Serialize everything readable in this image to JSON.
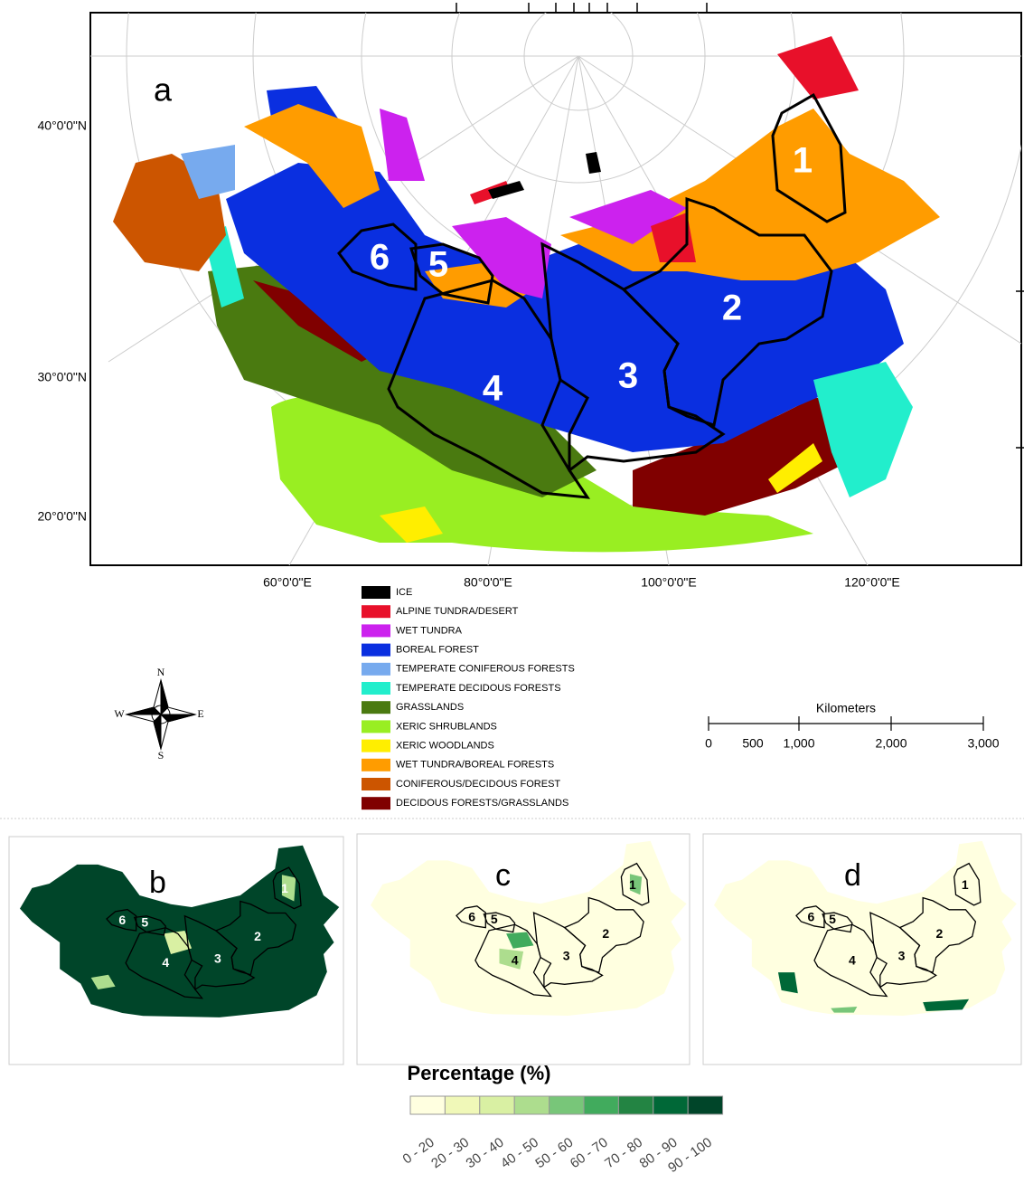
{
  "map": {
    "panel_label": "a",
    "lat_labels": [
      "40°0'0\"N",
      "30°0'0\"N",
      "20°0'0\"N"
    ],
    "lon_labels": [
      "60°0'0\"E",
      "80°0'0\"E",
      "100°0'0\"E",
      "120°0'0\"E"
    ],
    "regions": [
      "1",
      "2",
      "3",
      "4",
      "5",
      "6"
    ]
  },
  "legend": [
    {
      "label": "ICE",
      "color": "#000000"
    },
    {
      "label": "ALPINE TUNDRA/DESERT",
      "color": "#e8102a"
    },
    {
      "label": "WET TUNDRA",
      "color": "#cc22ee"
    },
    {
      "label": "BOREAL FOREST",
      "color": "#0a2fe0"
    },
    {
      "label": "TEMPERATE CONIFEROUS FORESTS",
      "color": "#77aaee"
    },
    {
      "label": "TEMPERATE DECIDOUS FORESTS",
      "color": "#22eecc"
    },
    {
      "label": "GRASSLANDS",
      "color": "#4a7a10"
    },
    {
      "label": "XERIC SHRUBLANDS",
      "color": "#99ee22"
    },
    {
      "label": "XERIC WOODLANDS",
      "color": "#ffee00"
    },
    {
      "label": "WET TUNDRA/BOREAL FORESTS",
      "color": "#ff9c00"
    },
    {
      "label": "CONIFEROUS/DECIDOUS FOREST",
      "color": "#cc5500"
    },
    {
      "label": "DECIDOUS FORESTS/GRASSLANDS",
      "color": "#800000"
    }
  ],
  "compass": {
    "n": "N",
    "e": "E",
    "s": "S",
    "w": "W"
  },
  "scale_bar": {
    "title": "Kilometers",
    "ticks": [
      "0",
      "500",
      "1,000",
      "2,000",
      "3,000"
    ]
  },
  "small_maps": [
    {
      "label": "b"
    },
    {
      "label": "c"
    },
    {
      "label": "d"
    }
  ],
  "colorbar": {
    "title": "Percentage (%)",
    "bins": [
      {
        "label": "0 - 20",
        "color": "#ffffe0"
      },
      {
        "label": "20 - 30",
        "color": "#f0f8b8"
      },
      {
        "label": "30 - 40",
        "color": "#d9f0a3"
      },
      {
        "label": "40 - 50",
        "color": "#addd8e"
      },
      {
        "label": "50 - 60",
        "color": "#78c679"
      },
      {
        "label": "60 - 70",
        "color": "#41ab5d"
      },
      {
        "label": "70 - 80",
        "color": "#238443"
      },
      {
        "label": "80 - 90",
        "color": "#006837"
      },
      {
        "label": "90 - 100",
        "color": "#004529"
      }
    ]
  }
}
